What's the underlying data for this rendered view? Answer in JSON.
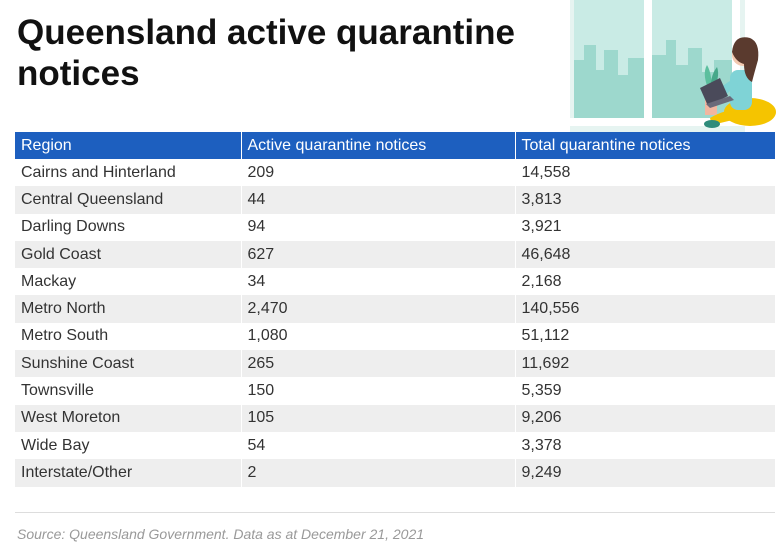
{
  "title": "Queensland active quarantine notices",
  "source": "Source: Queensland Government. Data as at December  21, 2021",
  "colors": {
    "header_bg": "#1d5fbf",
    "header_text": "#ffffff",
    "stripe": "#eeeeee"
  },
  "chart_data": {
    "type": "table",
    "columns": [
      "Region",
      "Active quarantine notices",
      "Total quarantine notices"
    ],
    "rows": [
      [
        "Cairns and Hinterland",
        "209",
        "14,558"
      ],
      [
        "Central Queensland",
        "44",
        "3,813"
      ],
      [
        "Darling Downs",
        "94",
        "3,921"
      ],
      [
        "Gold Coast",
        "627",
        "46,648"
      ],
      [
        "Mackay",
        "34",
        "2,168"
      ],
      [
        "Metro North",
        "2,470",
        "140,556"
      ],
      [
        "Metro South",
        "1,080",
        "51,112"
      ],
      [
        "Sunshine Coast",
        "265",
        "11,692"
      ],
      [
        "Townsville",
        "150",
        "5,359"
      ],
      [
        "West Moreton",
        "105",
        "9,206"
      ],
      [
        "Wide Bay",
        "54",
        "3,378"
      ],
      [
        "Interstate/Other",
        "2",
        "9,249"
      ]
    ]
  }
}
